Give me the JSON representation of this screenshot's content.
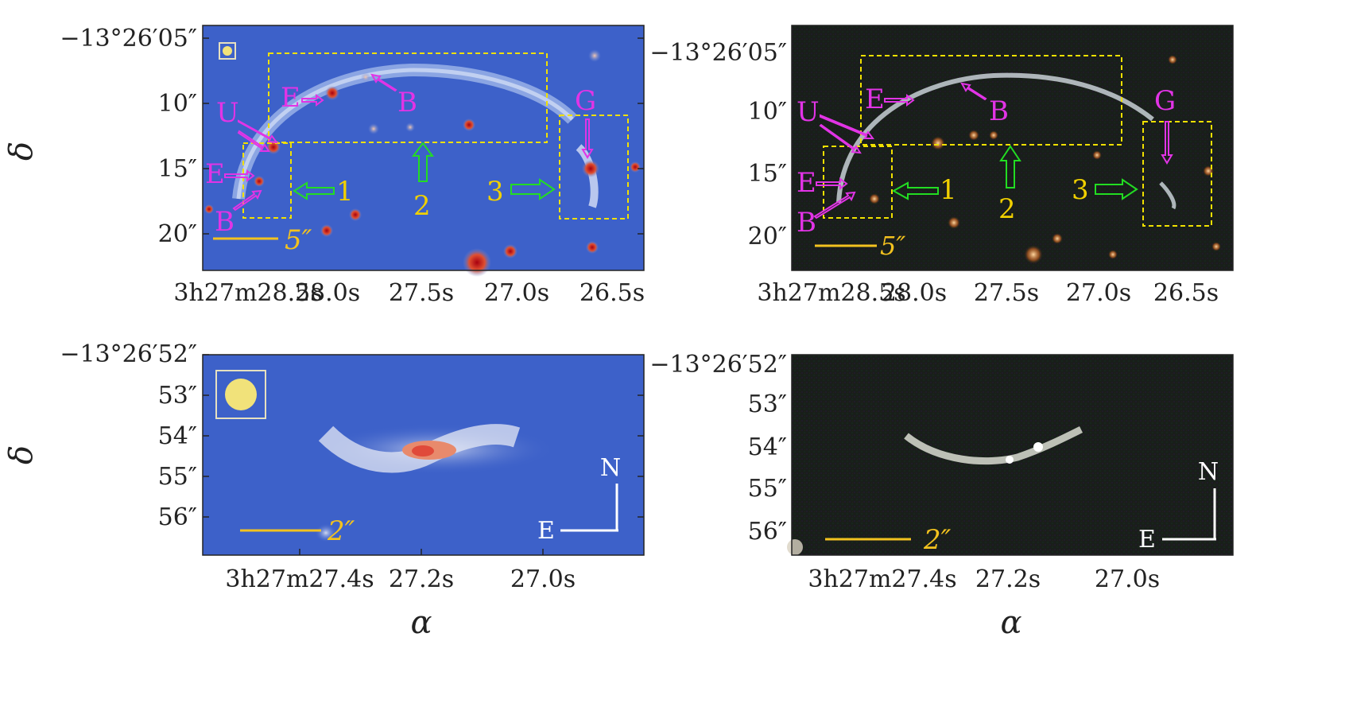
{
  "panels": [
    {
      "id": "top-left",
      "dec_ticks": [
        "−13°26′05″",
        "10″",
        "15″",
        "20″"
      ],
      "ra_ticks": [
        "3h27m28.5s",
        "28.0s",
        "27.5s",
        "27.0s",
        "26.5s"
      ],
      "dec_label": "δ",
      "ra_label": "",
      "scale_bar": "5″",
      "labels": [
        "E",
        "B",
        "U",
        "E",
        "B",
        "G",
        "1",
        "2",
        "3"
      ]
    },
    {
      "id": "top-right",
      "dec_ticks": [
        "−13°26′05″",
        "10″",
        "15″",
        "20″"
      ],
      "ra_ticks": [
        "3h27m28.5s",
        "28.0s",
        "27.5s",
        "27.0s",
        "26.5s"
      ],
      "scale_bar": "5″",
      "labels": [
        "E",
        "B",
        "U",
        "E",
        "B",
        "G",
        "1",
        "2",
        "3"
      ]
    },
    {
      "id": "bottom-left",
      "dec_ticks": [
        "−13°26′52″",
        "53″",
        "54″",
        "55″",
        "56″"
      ],
      "ra_ticks": [
        "3h27m27.4s",
        "27.2s",
        "27.0s"
      ],
      "dec_label": "δ",
      "ra_label": "α",
      "scale_bar": "2″",
      "compass": {
        "north": "N",
        "east": "E"
      }
    },
    {
      "id": "bottom-right",
      "dec_ticks": [
        "−13°26′52″",
        "53″",
        "54″",
        "55″",
        "56″"
      ],
      "ra_ticks": [
        "3h27m27.4s",
        "27.2s",
        "27.0s"
      ],
      "ra_label": "α",
      "scale_bar": "2″",
      "compass": {
        "north": "N",
        "east": "E"
      }
    }
  ],
  "colors": {
    "magenta": "#e234e6",
    "yellow_label": "#f0d000",
    "box_yellow": "#f0e000",
    "green_arrow": "#22dd22",
    "map_blue": "#3a5fc8",
    "scale_gold": "#f3c21f"
  }
}
